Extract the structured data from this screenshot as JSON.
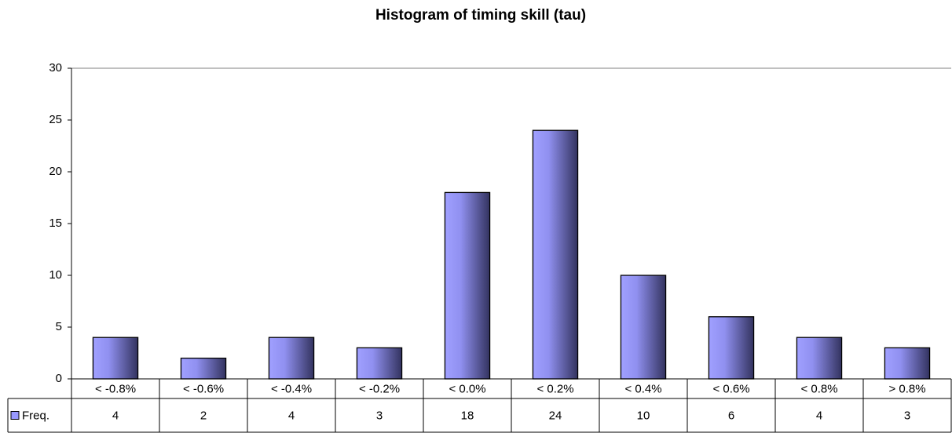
{
  "chart_data": {
    "type": "bar",
    "title": "Histogram of timing skill (tau)",
    "categories": [
      "< -0.8%",
      "< -0.6%",
      "< -0.4%",
      "< -0.2%",
      "< 0.0%",
      "< 0.2%",
      "< 0.4%",
      "< 0.6%",
      "< 0.8%",
      "> 0.8%"
    ],
    "series": [
      {
        "name": "Freq.",
        "color": "#9999ff",
        "values": [
          4,
          2,
          4,
          3,
          18,
          24,
          10,
          6,
          4,
          3
        ]
      }
    ],
    "ylim": [
      0,
      30
    ],
    "yticks": [
      0,
      5,
      10,
      15,
      20,
      25,
      30
    ],
    "grid": false
  }
}
